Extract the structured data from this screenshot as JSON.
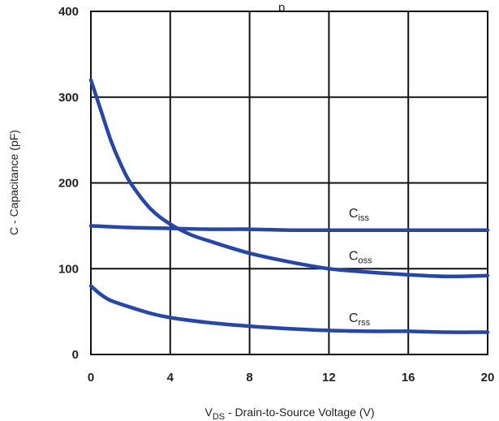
{
  "chart_data": {
    "type": "line",
    "title_fragment": "p",
    "xlabel": {
      "main": "V",
      "sub": "DS",
      "rest": " - Drain-to-Source Voltage (V)"
    },
    "ylabel": "C - Capacitance (pF)",
    "xlim": [
      0,
      20
    ],
    "ylim": [
      0,
      400
    ],
    "xticks": [
      0,
      4,
      8,
      12,
      16,
      20
    ],
    "yticks": [
      0,
      100,
      200,
      300,
      400
    ],
    "xtick_labels": [
      "0",
      "4",
      "8",
      "12",
      "16",
      "20"
    ],
    "ytick_labels": [
      "0",
      "100",
      "200",
      "300",
      "400"
    ],
    "grid": true,
    "series": [
      {
        "name": "Ciss",
        "label_main": "C",
        "label_sub": "iss",
        "color": "#2747a8",
        "x": [
          0,
          2,
          4,
          6,
          8,
          10,
          12,
          14,
          16,
          18,
          20
        ],
        "y": [
          150,
          148,
          147,
          146,
          146,
          145,
          145,
          145,
          145,
          145,
          145
        ]
      },
      {
        "name": "Coss",
        "label_main": "C",
        "label_sub": "oss",
        "color": "#2747a8",
        "x": [
          0,
          0.5,
          1,
          1.5,
          2,
          3,
          4,
          5,
          6,
          8,
          10,
          12,
          14,
          16,
          18,
          20
        ],
        "y": [
          320,
          285,
          250,
          222,
          200,
          170,
          152,
          140,
          132,
          118,
          108,
          100,
          96,
          93,
          91,
          92
        ]
      },
      {
        "name": "Crss",
        "label_main": "C",
        "label_sub": "rss",
        "color": "#2747a8",
        "x": [
          0,
          0.5,
          1,
          2,
          3,
          4,
          6,
          8,
          10,
          12,
          14,
          16,
          18,
          20
        ],
        "y": [
          80,
          70,
          63,
          55,
          48,
          43,
          37,
          33,
          30,
          28,
          27,
          27,
          26,
          26
        ]
      }
    ],
    "series_label_anchor": [
      {
        "x": 13.0,
        "y": 160
      },
      {
        "x": 13.0,
        "y": 110
      },
      {
        "x": 13.0,
        "y": 38
      }
    ]
  }
}
